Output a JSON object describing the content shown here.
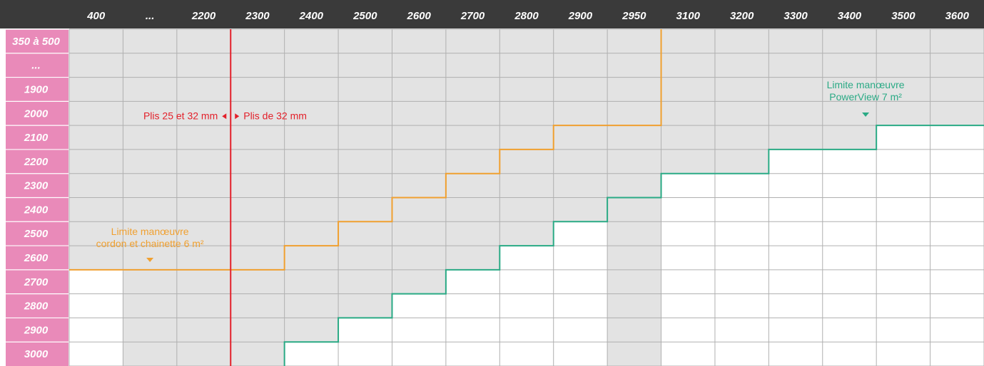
{
  "chart_data": {
    "type": "table",
    "columns": [
      "400",
      "...",
      "2200",
      "2300",
      "2400",
      "2500",
      "2600",
      "2700",
      "2800",
      "2900",
      "2950",
      "3100",
      "3200",
      "3300",
      "3400",
      "3500",
      "3600"
    ],
    "rows": [
      "350 à 500",
      "...",
      "1900",
      "2000",
      "2100",
      "2200",
      "2300",
      "2400",
      "2500",
      "2600",
      "2700",
      "2800",
      "2900",
      "3000"
    ],
    "series": [
      {
        "name": "Limite manœuvre cordon et chainette 6 m²",
        "color": "#f0a030",
        "max_row_by_column": [
          "2600",
          "2600",
          "2600",
          "2600",
          "2500",
          "2400",
          "2300",
          "2200",
          "2100",
          "2000",
          "2000",
          null,
          null,
          null,
          null,
          null,
          null
        ]
      },
      {
        "name": "Limite manœuvre PowerView 7 m²",
        "color": "#2aaa85",
        "max_row_by_column": [
          null,
          null,
          null,
          null,
          "2900",
          "2800",
          "2700",
          "2600",
          "2500",
          "2400",
          "2300",
          "2200",
          "2200",
          "2100",
          "2100",
          "2000",
          "2000"
        ]
      }
    ],
    "divider": {
      "after_column": "2200",
      "left_label": "Plis 25 et 32 mm",
      "right_label": "Plis de 32 mm",
      "color": "#e3202a"
    },
    "annotations": {
      "orange_line1": "Limite manœuvre",
      "orange_line2": "cordon et chainette 6 m²",
      "green_line1": "Limite manœuvre",
      "green_line2": "PowerView 7 m²"
    },
    "colors": {
      "header_bg": "#3a3a3a",
      "row_header_bg": "#e98ab9",
      "shaded_cell": "#e3e3e3",
      "grid_line": "#b0b0b0"
    }
  }
}
